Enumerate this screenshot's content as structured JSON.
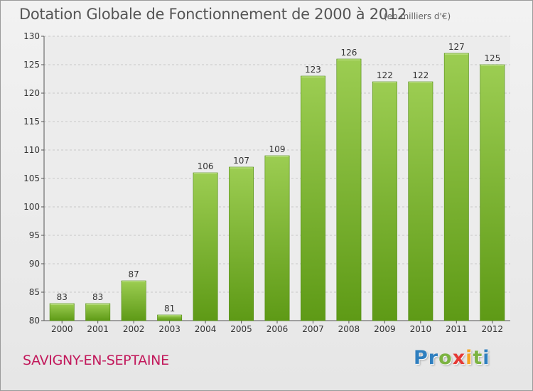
{
  "header": {
    "title": "Dotation Globale de Fonctionnement de 2000 à 2012",
    "unit": "(en milliers d'€)"
  },
  "footer": {
    "commune": "SAVIGNY-EN-SEPTAINE",
    "logo": [
      "P",
      "r",
      "o",
      "x",
      "i",
      "t",
      "i"
    ]
  },
  "colors": {
    "bar_top": "#9ccd52",
    "bar_bottom": "#5e9a16",
    "bar_edge": "#4f8a10",
    "commune": "#c2185b",
    "logo": [
      "#2f7fbf",
      "#2f7fbf",
      "#7cb342",
      "#e53935",
      "#f5a623",
      "#7cb342",
      "#2f7fbf"
    ]
  },
  "chart_data": {
    "type": "bar",
    "title": "Dotation Globale de Fonctionnement de 2000 à 2012",
    "categories": [
      "2000",
      "2001",
      "2002",
      "2003",
      "2004",
      "2005",
      "2006",
      "2007",
      "2008",
      "2009",
      "2010",
      "2011",
      "2012"
    ],
    "values": [
      83,
      83,
      87,
      81,
      106,
      107,
      109,
      123,
      126,
      122,
      122,
      127,
      125
    ],
    "ylim": [
      80,
      130
    ],
    "yticks": [
      80,
      85,
      90,
      95,
      100,
      105,
      110,
      115,
      120,
      125,
      130
    ],
    "grid": true
  }
}
